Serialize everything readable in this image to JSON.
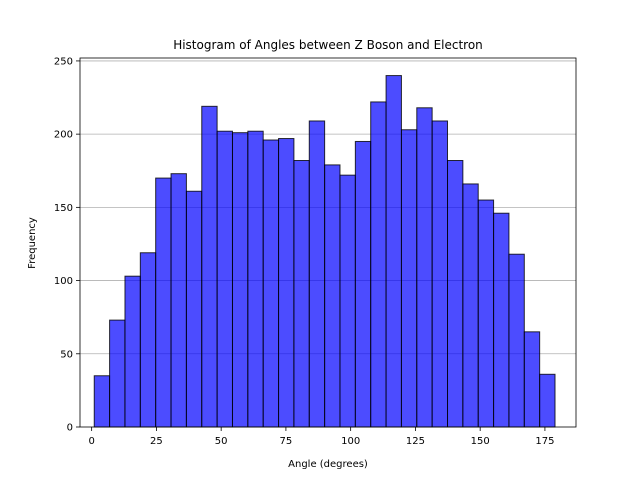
{
  "chart_data": {
    "type": "bar",
    "subtype": "histogram",
    "title": "Histogram of Angles between Z Boson and Electron",
    "xlabel": "Angle (degrees)",
    "ylabel": "Frequency",
    "xlim": [
      -4.5,
      187.0
    ],
    "ylim": [
      0,
      252
    ],
    "xticks": [
      0,
      25,
      50,
      75,
      100,
      125,
      150,
      175
    ],
    "yticks": [
      0,
      50,
      100,
      150,
      200,
      250
    ],
    "grid": "y",
    "bin_start": 1.0,
    "bin_width": 5.93,
    "values": [
      35,
      73,
      103,
      119,
      170,
      173,
      161,
      219,
      202,
      201,
      202,
      196,
      197,
      182,
      209,
      179,
      172,
      195,
      222,
      240,
      203,
      218,
      209,
      182,
      166,
      155,
      146,
      118,
      65,
      36
    ],
    "colors": {
      "bar_fill": "#0000ff",
      "bar_opacity": 0.7,
      "bar_edge": "#000000",
      "grid": "#b0b0b0"
    }
  }
}
